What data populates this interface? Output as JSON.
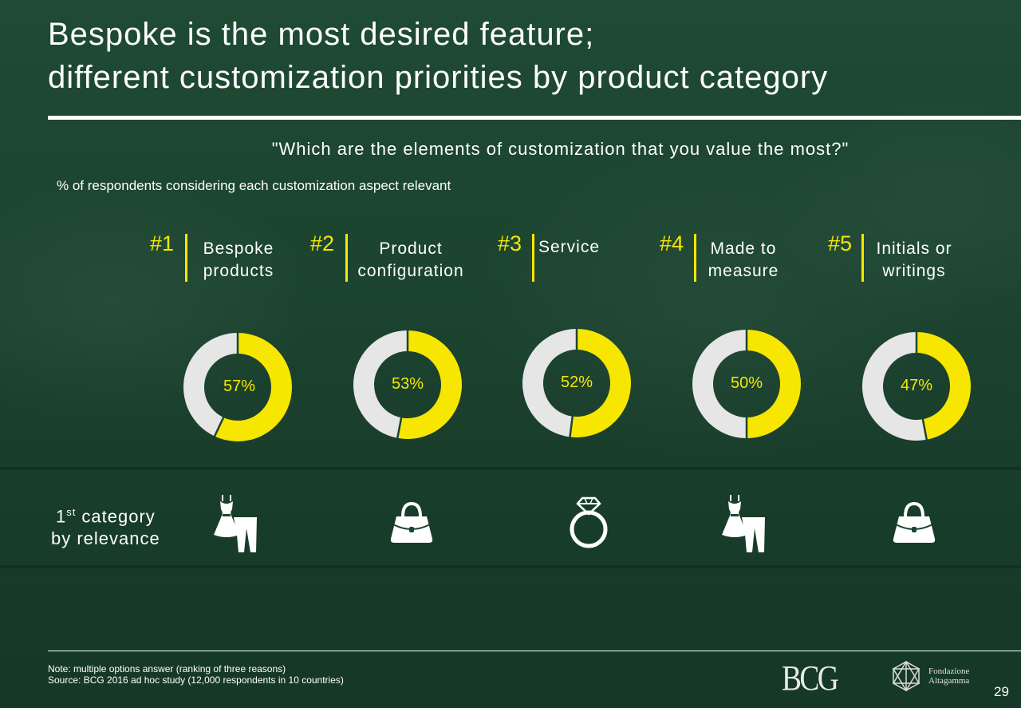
{
  "title_line1": "Bespoke is the most desired feature;",
  "title_line2": "different customization priorities by product category",
  "question": "\"Which are the elements of customization that you value the most?\"",
  "subtitle": "% of respondents considering each customization aspect relevant",
  "category_label": {
    "prefix": "1",
    "sup": "st",
    "text": " category",
    "line2": "by relevance"
  },
  "colors": {
    "accent": "#f7e600",
    "remainder": "#e6e6e6",
    "background": "#1c4530"
  },
  "chart_data": {
    "type": "donut",
    "title": "",
    "categories": [
      "Bespoke products",
      "Product configuration",
      "Service",
      "Made to measure",
      "Initials or writings"
    ],
    "ranks": [
      "#1",
      "#2",
      "#3",
      "#4",
      "#5"
    ],
    "labels": [
      "Bespoke\nproducts",
      "Product\nconfiguration",
      "Service",
      "Made to\nmeasure",
      "Initials or\nwritings"
    ],
    "values": [
      57,
      53,
      52,
      50,
      47
    ],
    "value_labels": [
      "57%",
      "53%",
      "52%",
      "50%",
      "47%"
    ],
    "unit": "%",
    "top_category_icons": [
      "clothing-icon",
      "handbag-icon",
      "ring-icon",
      "clothing-icon",
      "handbag-icon"
    ]
  },
  "footer": {
    "note": "Note: multiple options answer (ranking of three reasons)",
    "source": "Source: BCG 2016 ad hoc study (12,000 respondents in 10 countries)",
    "logo_bcg": "BCG",
    "logo_fa_line1": "Fondazione",
    "logo_fa_line2": "Altagamma",
    "page_number": "29"
  }
}
